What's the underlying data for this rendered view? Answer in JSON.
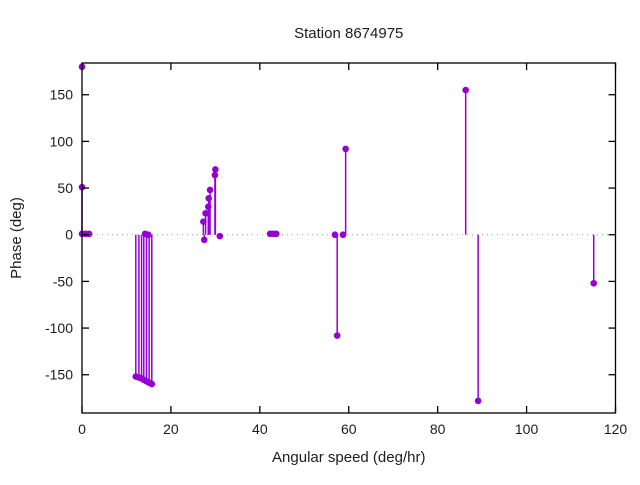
{
  "chart_data": {
    "type": "stem",
    "title": "Station 8674975",
    "xlabel": "Angular speed (deg/hr)",
    "ylabel": "Phase (deg)",
    "xlim": [
      0,
      120
    ],
    "ylim": [
      -191,
      184
    ],
    "xticks": [
      0,
      20,
      40,
      60,
      80,
      100,
      120
    ],
    "yticks": [
      -150,
      -100,
      -50,
      0,
      50,
      100,
      150
    ],
    "zero_line": true,
    "color": "#9400d3",
    "border_color": "#000000",
    "zero_line_color": "#999999",
    "points": [
      {
        "x": 0,
        "y": 180,
        "stem": false
      },
      {
        "x": 0,
        "y": 51,
        "stem": true
      },
      {
        "x": 0,
        "y": 1,
        "stem": true
      },
      {
        "x": 0.8,
        "y": 1,
        "stem": true
      },
      {
        "x": 1.6,
        "y": 1,
        "stem": true
      },
      {
        "x": 12.1,
        "y": -152,
        "stem": true
      },
      {
        "x": 12.8,
        "y": -153,
        "stem": true
      },
      {
        "x": 13.4,
        "y": -154,
        "stem": true
      },
      {
        "x": 13.9,
        "y": -155.5,
        "stem": true
      },
      {
        "x": 14.2,
        "y": 1,
        "stem": true
      },
      {
        "x": 14.5,
        "y": -157,
        "stem": true
      },
      {
        "x": 14.9,
        "y": 0,
        "stem": true
      },
      {
        "x": 15.1,
        "y": -158.5,
        "stem": true
      },
      {
        "x": 15.7,
        "y": -160,
        "stem": true
      },
      {
        "x": 27.3,
        "y": 14,
        "stem": true
      },
      {
        "x": 27.5,
        "y": -5.5,
        "stem": true
      },
      {
        "x": 27.8,
        "y": 23,
        "stem": true
      },
      {
        "x": 28.4,
        "y": 30,
        "stem": true
      },
      {
        "x": 28.5,
        "y": 39,
        "stem": true
      },
      {
        "x": 28.8,
        "y": 48,
        "stem": true
      },
      {
        "x": 29.9,
        "y": 64,
        "stem": true
      },
      {
        "x": 30.0,
        "y": 70,
        "stem": true
      },
      {
        "x": 31.0,
        "y": -1.5,
        "stem": true
      },
      {
        "x": 42.3,
        "y": 1,
        "stem": true
      },
      {
        "x": 43.0,
        "y": 1,
        "stem": true
      },
      {
        "x": 43.7,
        "y": 1,
        "stem": true
      },
      {
        "x": 56.9,
        "y": 0,
        "stem": true
      },
      {
        "x": 57.4,
        "y": -108,
        "stem": true
      },
      {
        "x": 58.7,
        "y": 0,
        "stem": true
      },
      {
        "x": 59.3,
        "y": 92,
        "stem": true
      },
      {
        "x": 86.3,
        "y": 155,
        "stem": true
      },
      {
        "x": 89.1,
        "y": -178,
        "stem": true
      },
      {
        "x": 115.1,
        "y": -52,
        "stem": true
      }
    ]
  }
}
